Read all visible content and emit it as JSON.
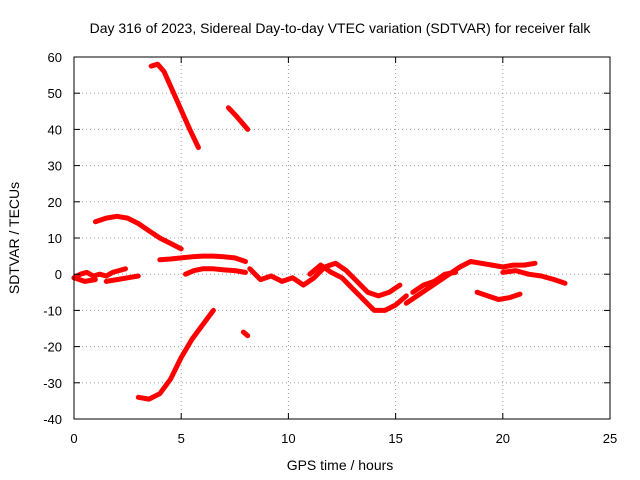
{
  "chart_data": {
    "type": "scatter",
    "title": "Day 316 of 2023, Sidereal Day-to-day VTEC variation (SDTVAR) for receiver falk",
    "xlabel": "GPS time / hours",
    "ylabel": "SDTVAR / TECUs",
    "xlim": [
      0,
      25
    ],
    "ylim": [
      -40,
      60
    ],
    "xticks": [
      0,
      5,
      10,
      15,
      20,
      25
    ],
    "yticks": [
      -40,
      -30,
      -20,
      -10,
      0,
      10,
      20,
      30,
      40,
      50,
      60
    ],
    "grid": true,
    "marker_color": "#ff0000",
    "series": [
      {
        "name": "arc1",
        "x": [
          3.6,
          3.9,
          4.2,
          4.5,
          4.8,
          5.1,
          5.4,
          5.8
        ],
        "y": [
          57.5,
          58,
          56,
          52,
          48,
          44,
          40,
          35
        ]
      },
      {
        "name": "arc2",
        "x": [
          7.2,
          7.6,
          8.1
        ],
        "y": [
          46,
          43.5,
          40
        ]
      },
      {
        "name": "arc3",
        "x": [
          1.0,
          1.5,
          2.0,
          2.5,
          3.0,
          3.5,
          4.0,
          4.5,
          5.0
        ],
        "y": [
          14.5,
          15.5,
          16,
          15.5,
          14,
          12,
          10,
          8.5,
          7
        ]
      },
      {
        "name": "arc4",
        "x": [
          4.0,
          4.5,
          5.0,
          5.5,
          6.0,
          6.5,
          7.0,
          7.5,
          8.0
        ],
        "y": [
          4,
          4.2,
          4.5,
          4.8,
          5,
          5,
          4.8,
          4.5,
          3.5
        ]
      },
      {
        "name": "arc5",
        "x": [
          5.2,
          5.6,
          6.0,
          6.5,
          7.0,
          7.5,
          8.0
        ],
        "y": [
          0,
          1,
          1.5,
          1.5,
          1.2,
          1,
          0.5
        ]
      },
      {
        "name": "arc6",
        "x": [
          0.0,
          0.3,
          0.6,
          0.9,
          1.2,
          1.5,
          1.8,
          2.1,
          2.4
        ],
        "y": [
          -1,
          0,
          0.5,
          -0.5,
          0,
          -0.5,
          0.5,
          1,
          1.5
        ]
      },
      {
        "name": "arc7",
        "x": [
          0.0,
          0.5,
          1.0
        ],
        "y": [
          -1,
          -2,
          -1.5
        ]
      },
      {
        "name": "arc8",
        "x": [
          1.5,
          2.0,
          2.5,
          3.0
        ],
        "y": [
          -2,
          -1.5,
          -1,
          -0.5
        ]
      },
      {
        "name": "arc9",
        "x": [
          3.0,
          3.5,
          4.0,
          4.5,
          5.0,
          5.5,
          6.0,
          6.5
        ],
        "y": [
          -34,
          -34.5,
          -33,
          -29,
          -23,
          -18,
          -14,
          -10
        ]
      },
      {
        "name": "arc10",
        "x": [
          7.9,
          8.1
        ],
        "y": [
          -16,
          -17
        ]
      },
      {
        "name": "arc11",
        "x": [
          8.2,
          8.7,
          9.2,
          9.7,
          10.2,
          10.7,
          11.2,
          11.7,
          12.2,
          12.7,
          13.2,
          13.7,
          14.2,
          14.7,
          15.2
        ],
        "y": [
          1.5,
          -1.5,
          -0.5,
          -2,
          -1,
          -3,
          -1,
          2,
          3,
          1,
          -2,
          -5,
          -6,
          -5,
          -3
        ]
      },
      {
        "name": "arc12",
        "x": [
          11.0,
          11.5,
          12.0,
          12.5,
          13.0,
          13.5,
          14.0,
          14.5,
          15.0,
          15.5
        ],
        "y": [
          0,
          2.5,
          0.5,
          -1,
          -4,
          -7,
          -10,
          -10,
          -8.5,
          -6
        ]
      },
      {
        "name": "arc13",
        "x": [
          15.5,
          16.0,
          16.5,
          17.0,
          17.5,
          18.0,
          18.5,
          19.0,
          19.5,
          20.0,
          20.5,
          21.0,
          21.5
        ],
        "y": [
          -8,
          -6,
          -4,
          -2,
          0,
          2,
          3.5,
          3,
          2.5,
          2,
          2.5,
          2.5,
          3
        ]
      },
      {
        "name": "arc14",
        "x": [
          15.8,
          16.3,
          16.8,
          17.3,
          17.8
        ],
        "y": [
          -5,
          -3,
          -2,
          0,
          0.5
        ]
      },
      {
        "name": "arc15",
        "x": [
          18.8,
          19.3,
          19.8,
          20.3,
          20.8
        ],
        "y": [
          -5,
          -6,
          -7,
          -6.5,
          -5.5
        ]
      },
      {
        "name": "arc16",
        "x": [
          20.0,
          20.6,
          21.2,
          21.8,
          22.4,
          22.9
        ],
        "y": [
          0.5,
          1,
          0,
          -0.5,
          -1.5,
          -2.5
        ]
      }
    ]
  }
}
